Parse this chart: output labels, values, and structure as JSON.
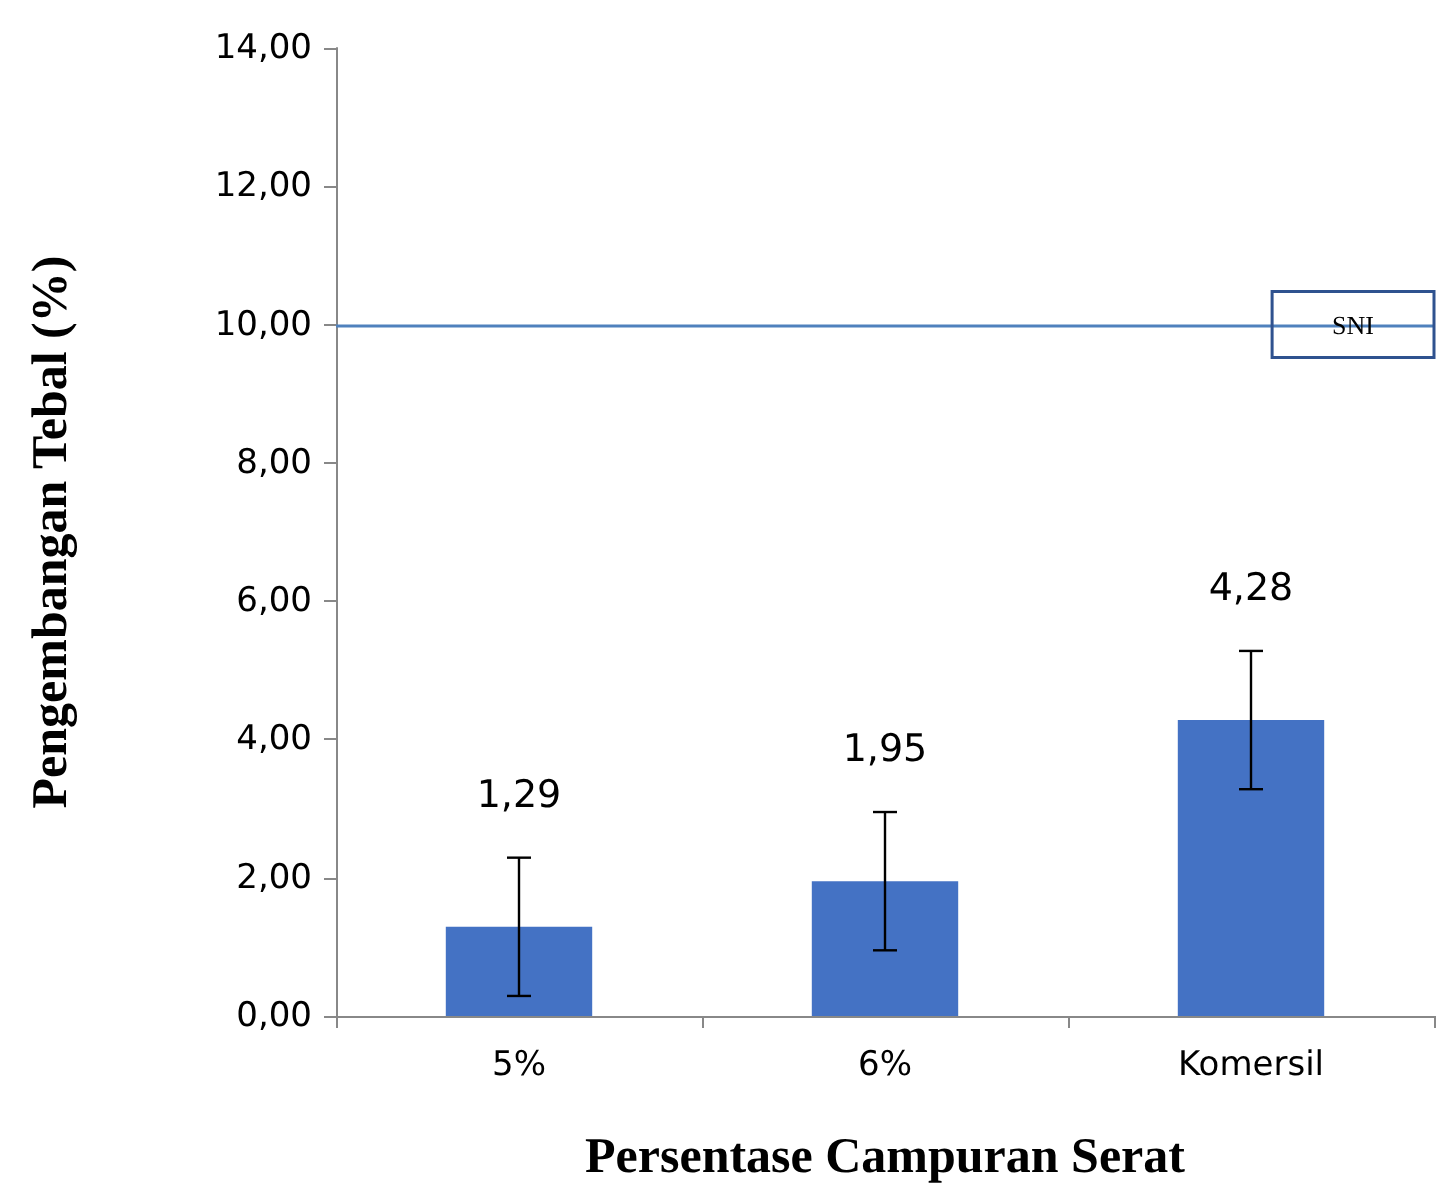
{
  "chart_data": {
    "type": "bar",
    "xlabel": "Persentase Campuran Serat",
    "ylabel": "Pengembangan Tebal (%)",
    "categories": [
      "5%",
      "6%",
      "Komersil"
    ],
    "values": [
      1.29,
      1.95,
      4.28
    ],
    "color": "#4472c4",
    "errors": [
      1,
      1,
      1
    ],
    "value_labels": [
      "1,29",
      "1,95",
      "4,28"
    ],
    "ylim": [
      0,
      14
    ],
    "yticks": [
      {
        "value": 0,
        "label": "0,00"
      },
      {
        "value": 2,
        "label": "2,00"
      },
      {
        "value": 4,
        "label": "4,00"
      },
      {
        "value": 6,
        "label": "6,00"
      },
      {
        "value": 8,
        "label": "8,00"
      },
      {
        "value": 10,
        "label": "10,00"
      },
      {
        "value": 12,
        "label": "12,00"
      },
      {
        "value": 14,
        "label": "14,00"
      }
    ],
    "ref_lines": [
      {
        "axis": "y",
        "value": 10,
        "label": "SNI",
        "color": "#4f81bd"
      }
    ],
    "grid": false
  }
}
